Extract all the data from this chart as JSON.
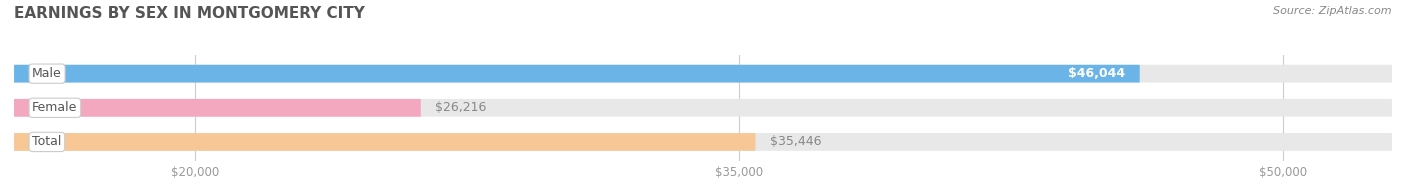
{
  "title": "EARNINGS BY SEX IN MONTGOMERY CITY",
  "source": "Source: ZipAtlas.com",
  "categories": [
    "Male",
    "Female",
    "Total"
  ],
  "values": [
    46044,
    26216,
    35446
  ],
  "bar_colors": [
    "#6ab4e8",
    "#f4a8c0",
    "#f7c896"
  ],
  "bar_bg_color": "#e8e8e8",
  "x_min": 15000,
  "x_max": 53000,
  "x_ticks": [
    20000,
    35000,
    50000
  ],
  "x_tick_labels": [
    "$20,000",
    "$35,000",
    "$50,000"
  ],
  "bar_height": 0.52,
  "figsize": [
    14.06,
    1.96
  ],
  "dpi": 100,
  "title_fontsize": 11,
  "tick_fontsize": 8.5,
  "source_fontsize": 8,
  "title_color": "#555555",
  "source_color": "#888888",
  "category_fontsize": 9,
  "category_color": "#555555",
  "value_label_fontsize": 9,
  "grid_color": "#cccccc",
  "bg_color": "#f0f0f0"
}
